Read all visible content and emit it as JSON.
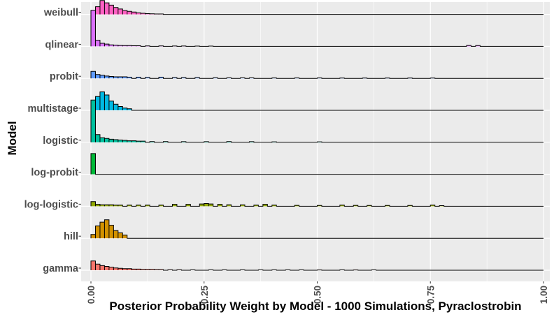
{
  "chart_data": {
    "type": "ridgeline-histogram",
    "title": "",
    "xlabel": "Posterior Probability Weight by Model - 1000 Simulations, Pyraclostrobin",
    "ylabel": "Model",
    "xlim": [
      0,
      1
    ],
    "x_ticks": [
      "0.00",
      "0.25",
      "0.50",
      "0.75",
      "1.00"
    ],
    "bin_width": 0.01,
    "grid": true,
    "legend": "none",
    "series": [
      {
        "name": "gamma",
        "color": "#F8766D",
        "bins": [
          [
            0.0,
            0.12
          ],
          [
            0.01,
            0.08
          ],
          [
            0.02,
            0.06
          ],
          [
            0.03,
            0.05
          ],
          [
            0.04,
            0.04
          ],
          [
            0.05,
            0.03
          ],
          [
            0.06,
            0.025
          ],
          [
            0.07,
            0.02
          ],
          [
            0.08,
            0.02
          ],
          [
            0.09,
            0.015
          ],
          [
            0.1,
            0.015
          ],
          [
            0.11,
            0.01
          ],
          [
            0.12,
            0.01
          ],
          [
            0.13,
            0.01
          ],
          [
            0.14,
            0.008
          ],
          [
            0.15,
            0.008
          ],
          [
            0.17,
            0.006
          ],
          [
            0.19,
            0.006
          ],
          [
            0.22,
            0.005
          ],
          [
            0.26,
            0.005
          ],
          [
            0.29,
            0.004
          ],
          [
            0.33,
            0.004
          ],
          [
            0.37,
            0.004
          ],
          [
            0.4,
            0.004
          ],
          [
            0.43,
            0.004
          ],
          [
            0.46,
            0.004
          ],
          [
            0.5,
            0.003
          ],
          [
            0.55,
            0.004
          ],
          [
            0.58,
            0.003
          ],
          [
            0.62,
            0.004
          ]
        ]
      },
      {
        "name": "hill",
        "color": "#D39200",
        "bins": [
          [
            0.0,
            0.05
          ],
          [
            0.01,
            0.16
          ],
          [
            0.02,
            0.21
          ],
          [
            0.03,
            0.24
          ],
          [
            0.04,
            0.17
          ],
          [
            0.05,
            0.1
          ],
          [
            0.06,
            0.07
          ],
          [
            0.07,
            0.04
          ]
        ]
      },
      {
        "name": "log-logistic",
        "color": "#93AA00",
        "bins": [
          [
            0.0,
            0.06
          ],
          [
            0.01,
            0.025
          ],
          [
            0.02,
            0.02
          ],
          [
            0.03,
            0.02
          ],
          [
            0.04,
            0.02
          ],
          [
            0.05,
            0.015
          ],
          [
            0.06,
            0.015
          ],
          [
            0.08,
            0.015
          ],
          [
            0.1,
            0.015
          ],
          [
            0.12,
            0.015
          ],
          [
            0.15,
            0.015
          ],
          [
            0.18,
            0.025
          ],
          [
            0.21,
            0.025
          ],
          [
            0.24,
            0.03
          ],
          [
            0.25,
            0.035
          ],
          [
            0.26,
            0.03
          ],
          [
            0.28,
            0.025
          ],
          [
            0.3,
            0.02
          ],
          [
            0.33,
            0.018
          ],
          [
            0.36,
            0.015
          ],
          [
            0.38,
            0.025
          ],
          [
            0.4,
            0.015
          ],
          [
            0.45,
            0.012
          ],
          [
            0.5,
            0.01
          ],
          [
            0.55,
            0.015
          ],
          [
            0.58,
            0.012
          ],
          [
            0.61,
            0.01
          ],
          [
            0.65,
            0.01
          ],
          [
            0.7,
            0.01
          ],
          [
            0.75,
            0.015
          ],
          [
            0.77,
            0.008
          ]
        ]
      },
      {
        "name": "log-probit",
        "color": "#00BA38",
        "bins": [
          [
            0.0,
            0.27
          ]
        ]
      },
      {
        "name": "logistic",
        "color": "#00C19F",
        "bins": [
          [
            0.0,
            0.55
          ],
          [
            0.01,
            0.1
          ],
          [
            0.02,
            0.06
          ],
          [
            0.03,
            0.05
          ],
          [
            0.04,
            0.04
          ],
          [
            0.05,
            0.035
          ],
          [
            0.06,
            0.03
          ],
          [
            0.07,
            0.025
          ],
          [
            0.08,
            0.02
          ],
          [
            0.09,
            0.02
          ],
          [
            0.1,
            0.015
          ],
          [
            0.11,
            0.015
          ],
          [
            0.13,
            0.01
          ],
          [
            0.16,
            0.01
          ],
          [
            0.2,
            0.008
          ],
          [
            0.25,
            0.008
          ],
          [
            0.3,
            0.01
          ],
          [
            0.35,
            0.008
          ],
          [
            0.4,
            0.006
          ],
          [
            0.5,
            0.006
          ]
        ]
      },
      {
        "name": "multistage",
        "color": "#00B9E3",
        "bins": [
          [
            0.0,
            0.06
          ],
          [
            0.01,
            0.18
          ],
          [
            0.02,
            0.24
          ],
          [
            0.03,
            0.2
          ],
          [
            0.04,
            0.12
          ],
          [
            0.05,
            0.08
          ],
          [
            0.06,
            0.05
          ],
          [
            0.07,
            0.03
          ],
          [
            0.08,
            0.02
          ]
        ]
      },
      {
        "name": "probit",
        "color": "#619CFF",
        "bins": [
          [
            0.0,
            0.09
          ],
          [
            0.01,
            0.05
          ],
          [
            0.02,
            0.04
          ],
          [
            0.03,
            0.03
          ],
          [
            0.04,
            0.025
          ],
          [
            0.05,
            0.02
          ],
          [
            0.06,
            0.02
          ],
          [
            0.07,
            0.02
          ],
          [
            0.08,
            0.015
          ],
          [
            0.1,
            0.015
          ],
          [
            0.12,
            0.012
          ],
          [
            0.15,
            0.015
          ],
          [
            0.18,
            0.01
          ],
          [
            0.2,
            0.01
          ],
          [
            0.23,
            0.01
          ],
          [
            0.27,
            0.008
          ],
          [
            0.3,
            0.006
          ],
          [
            0.33,
            0.006
          ],
          [
            0.35,
            0.006
          ],
          [
            0.4,
            0.005
          ],
          [
            0.45,
            0.005
          ],
          [
            0.5,
            0.005
          ],
          [
            0.55,
            0.004
          ],
          [
            0.6,
            0.004
          ],
          [
            0.65,
            0.004
          ],
          [
            0.7,
            0.004
          ],
          [
            0.75,
            0.004
          ]
        ]
      },
      {
        "name": "qlinear",
        "color": "#DB72FB",
        "bins": [
          [
            0.0,
            0.47
          ],
          [
            0.01,
            0.08
          ],
          [
            0.02,
            0.04
          ],
          [
            0.03,
            0.03
          ],
          [
            0.04,
            0.02
          ],
          [
            0.05,
            0.015
          ],
          [
            0.06,
            0.012
          ],
          [
            0.07,
            0.01
          ],
          [
            0.08,
            0.01
          ],
          [
            0.09,
            0.008
          ],
          [
            0.1,
            0.008
          ],
          [
            0.12,
            0.006
          ],
          [
            0.15,
            0.006
          ],
          [
            0.18,
            0.005
          ],
          [
            0.2,
            0.005
          ],
          [
            0.23,
            0.004
          ],
          [
            0.26,
            0.004
          ],
          [
            0.83,
            0.012
          ],
          [
            0.85,
            0.01
          ]
        ]
      },
      {
        "name": "weibull",
        "color": "#FF61C3",
        "bins": [
          [
            0.0,
            0.03
          ],
          [
            0.01,
            0.1
          ],
          [
            0.02,
            0.18
          ],
          [
            0.03,
            0.15
          ],
          [
            0.04,
            0.12
          ],
          [
            0.05,
            0.09
          ],
          [
            0.06,
            0.07
          ],
          [
            0.07,
            0.05
          ],
          [
            0.08,
            0.04
          ],
          [
            0.09,
            0.03
          ],
          [
            0.1,
            0.02
          ],
          [
            0.11,
            0.015
          ],
          [
            0.12,
            0.01
          ],
          [
            0.13,
            0.008
          ],
          [
            0.14,
            0.006
          ],
          [
            0.15,
            0.005
          ]
        ]
      }
    ]
  }
}
